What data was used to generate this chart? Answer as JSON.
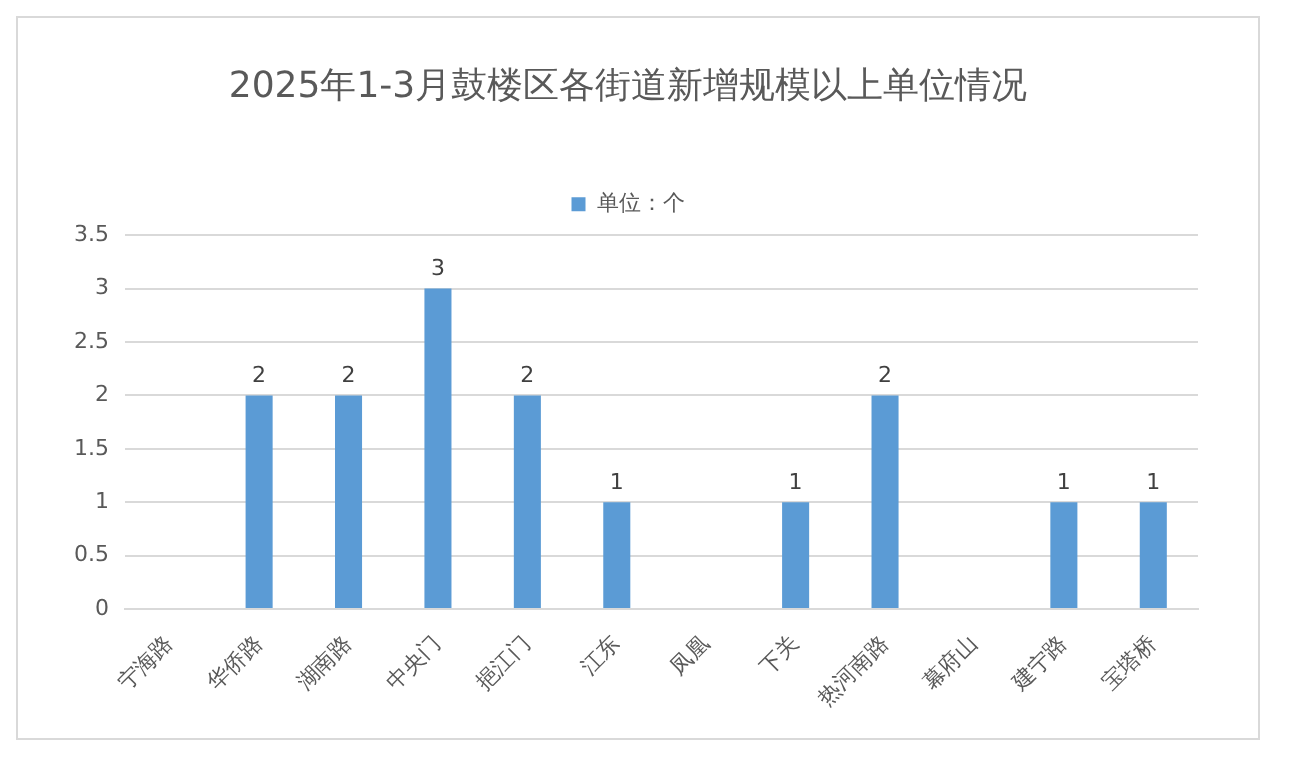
{
  "chart_data": {
    "type": "bar",
    "title": "2025年1-3月鼓楼区各街道新增规模以上单位情况",
    "categories": [
      "宁海路",
      "华侨路",
      "湖南路",
      "中央门",
      "挹江门",
      "江东",
      "凤凰",
      "下关",
      "热河南路",
      "幕府山",
      "建宁路",
      "宝塔桥"
    ],
    "series": [
      {
        "name": "单位：个",
        "color": "#5b9bd5",
        "values": [
          0,
          2,
          2,
          3,
          2,
          1,
          0,
          1,
          2,
          0,
          1,
          1
        ],
        "value_labels": [
          null,
          "2",
          "2",
          "3",
          "2",
          "1",
          null,
          "1",
          "2",
          null,
          "1",
          "1"
        ]
      }
    ],
    "ylim": [
      0,
      3.5
    ],
    "yticks": [
      0,
      0.5,
      1,
      1.5,
      2,
      2.5,
      3,
      3.5
    ],
    "grid": "y",
    "legend": "top"
  }
}
